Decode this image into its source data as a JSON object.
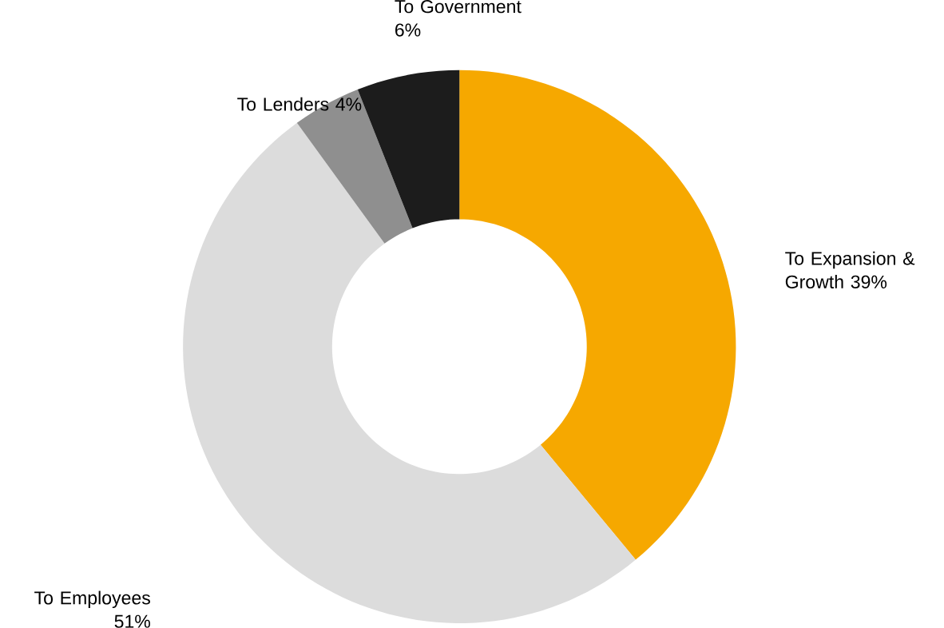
{
  "chart_data": {
    "type": "donut",
    "categories": [
      "To Expansion & Growth",
      "To Employees",
      "To Lenders",
      "To Government"
    ],
    "values": [
      39,
      51,
      4,
      6
    ],
    "value_labels": [
      "39%",
      "51%",
      "4%",
      "6%"
    ],
    "colors": [
      "#f6a800",
      "#dcdcdc",
      "#8f8f8f",
      "#1c1c1c"
    ]
  }
}
